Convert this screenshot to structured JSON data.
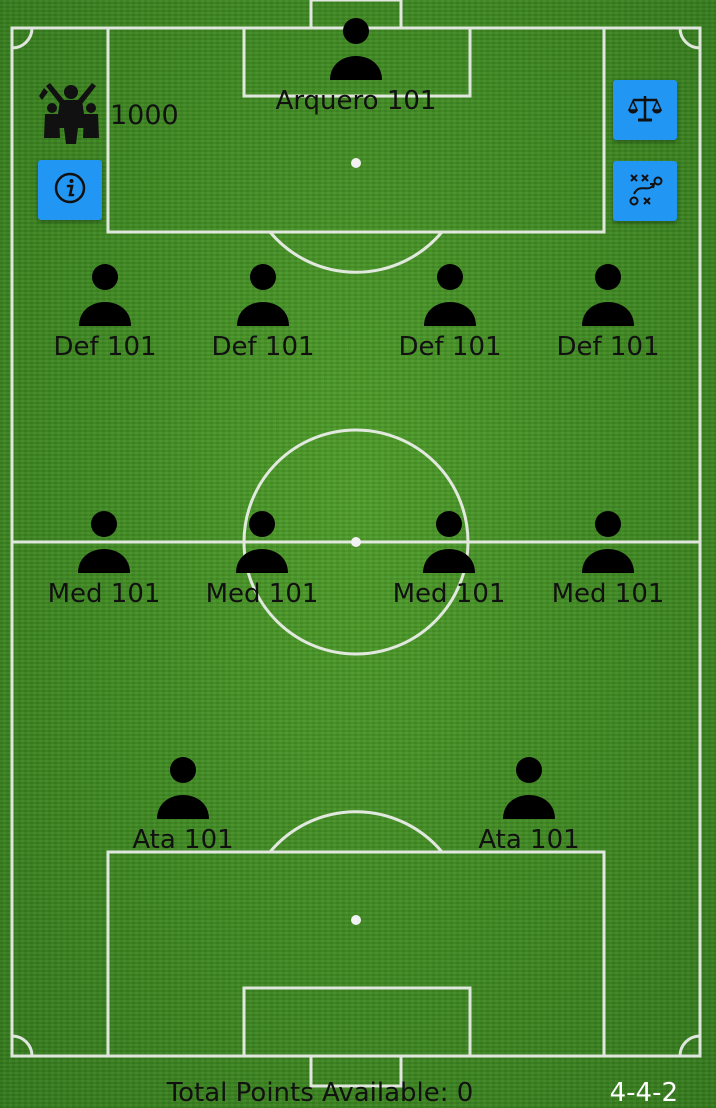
{
  "budget": {
    "value": "1000",
    "icon": "fans-cheering-icon"
  },
  "buttons": {
    "info": {
      "icon": "info-icon",
      "color": "#2196f3"
    },
    "balance": {
      "icon": "balance-scale-icon",
      "color": "#2196f3"
    },
    "tactics": {
      "icon": "tactics-board-icon",
      "color": "#2196f3"
    }
  },
  "players": {
    "goalkeeper": {
      "label": "Arquero 101"
    },
    "defenders": [
      {
        "label": "Def 101"
      },
      {
        "label": "Def 101"
      },
      {
        "label": "Def 101"
      },
      {
        "label": "Def 101"
      }
    ],
    "midfielders": [
      {
        "label": "Med 101"
      },
      {
        "label": "Med 101"
      },
      {
        "label": "Med 101"
      },
      {
        "label": "Med 101"
      }
    ],
    "attackers": [
      {
        "label": "Ata 101"
      },
      {
        "label": "Ata 101"
      }
    ]
  },
  "footer": {
    "points_label": "Total Points Available: 0",
    "formation": "4-4-2"
  },
  "colors": {
    "pitch": "#3f8a22",
    "lines": "#ffffff",
    "accent": "#2196f3"
  }
}
